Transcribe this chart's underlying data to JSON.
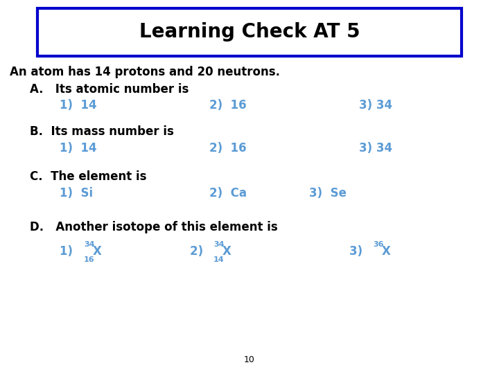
{
  "title": "Learning Check AT 5",
  "title_fontsize": 20,
  "title_box_color": "#0000cc",
  "bg_color": "#ffffff",
  "black": "#000000",
  "blue": "#5b9bd5",
  "intro": "An atom has 14 protons and 20 neutrons.",
  "body_fontsize": 12,
  "answer_fontsize": 12,
  "super_sub_fontsize": 8,
  "page_number": "10",
  "page_fontsize": 9
}
